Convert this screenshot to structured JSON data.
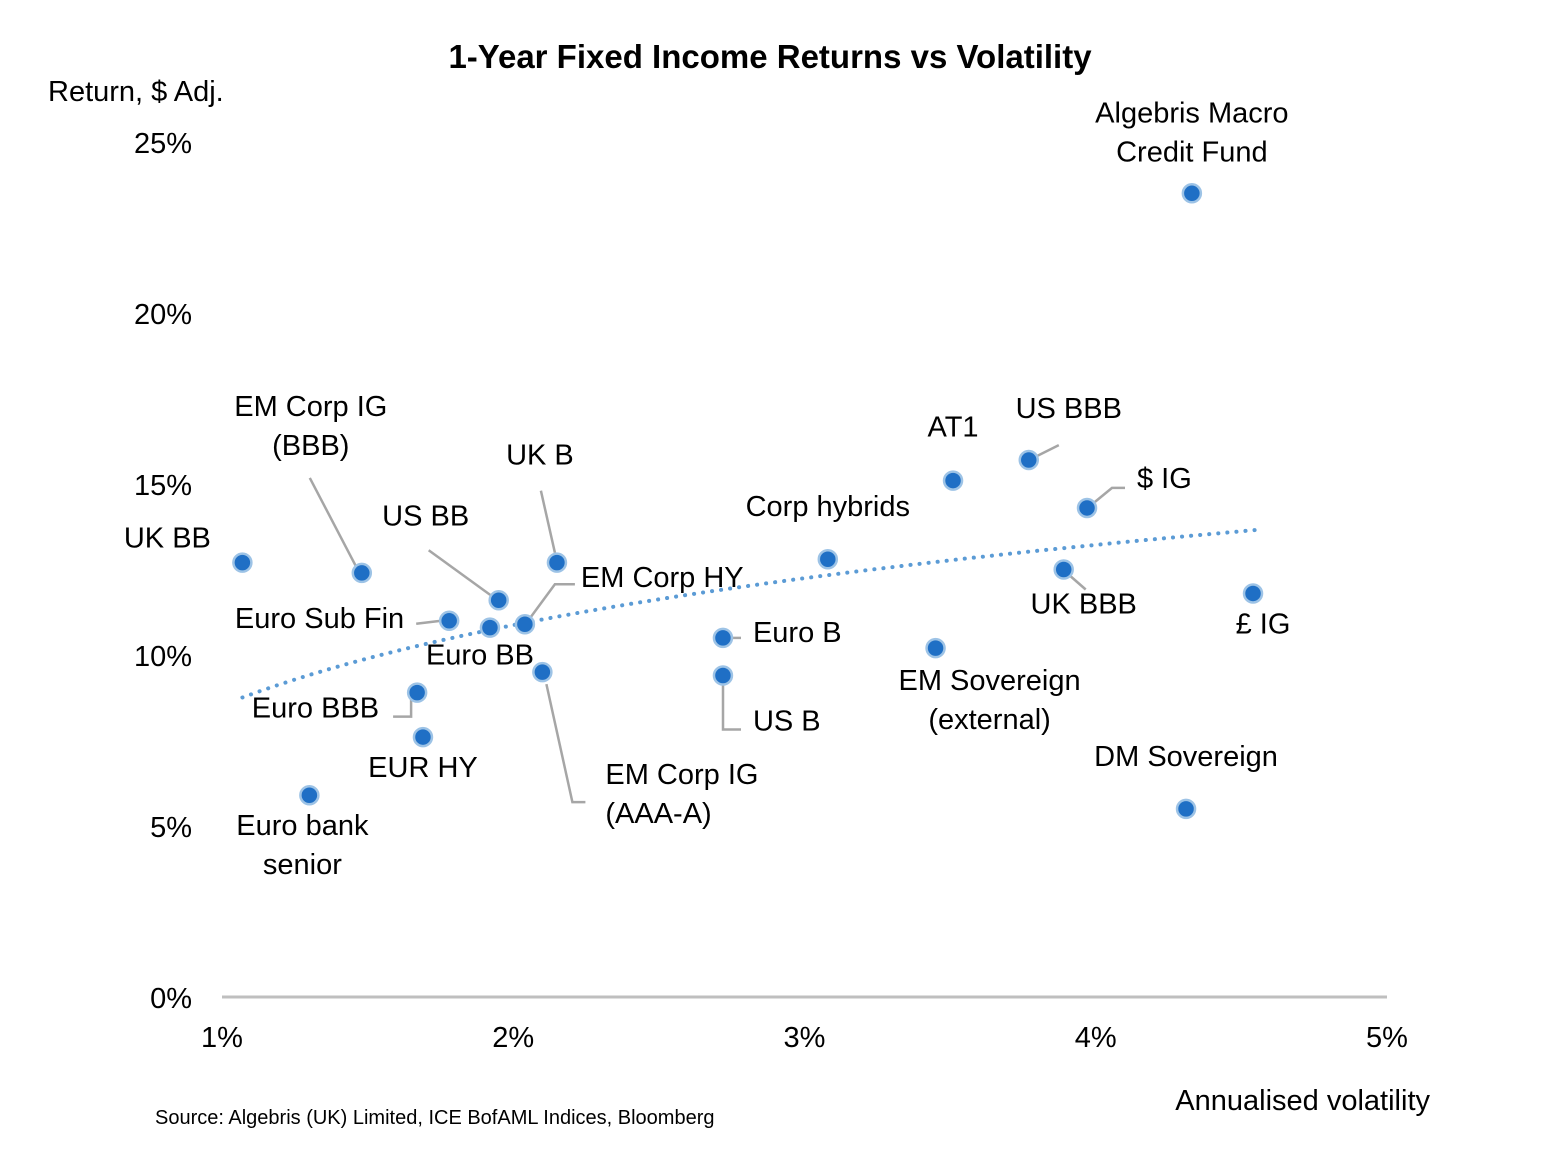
{
  "chart_data": {
    "type": "scatter",
    "title": "1-Year Fixed Income Returns vs Volatility",
    "ylabel": "Return, $ Adj.",
    "xlabel": "Annualised volatility",
    "source": "Source: Algebris (UK) Limited, ICE BofAML Indices, Bloomberg",
    "xlim": [
      1,
      5
    ],
    "ylim": [
      0,
      25
    ],
    "x_ticks": [
      "1%",
      "2%",
      "3%",
      "4%",
      "5%"
    ],
    "y_ticks": [
      "0%",
      "5%",
      "10%",
      "15%",
      "20%",
      "25%"
    ],
    "grid": false,
    "marker_color": "#1F6FC5",
    "marker_edge_color": "#9DC3E6",
    "trendline": {
      "type": "logarithmic",
      "style": "dotted",
      "color": "#5B9BD5",
      "x_start": 1.07,
      "x_end": 4.55
    },
    "points": [
      {
        "name": "Algebris Macro Credit Fund",
        "label_lines": [
          "Algebris Macro",
          "Credit Fund"
        ],
        "x": 4.33,
        "y": 23.5
      },
      {
        "name": "UK BB",
        "label_lines": [
          "UK BB"
        ],
        "x": 1.07,
        "y": 12.7
      },
      {
        "name": "EM Corp IG (BBB)",
        "label_lines": [
          "EM Corp IG",
          "(BBB)"
        ],
        "x": 1.48,
        "y": 12.4
      },
      {
        "name": "UK B",
        "label_lines": [
          "UK B"
        ],
        "x": 2.15,
        "y": 12.7
      },
      {
        "name": "US BB",
        "label_lines": [
          "US BB"
        ],
        "x": 1.95,
        "y": 11.6
      },
      {
        "name": "EM Corp HY",
        "label_lines": [
          "EM Corp HY"
        ],
        "x": 2.04,
        "y": 10.9
      },
      {
        "name": "Euro Sub Fin",
        "label_lines": [
          "Euro Sub Fin"
        ],
        "x": 1.78,
        "y": 11.0
      },
      {
        "name": "Euro BB",
        "label_lines": [
          "Euro BB"
        ],
        "x": 1.92,
        "y": 10.8
      },
      {
        "name": "EM Corp IG (AAA-A)",
        "label_lines": [
          "EM Corp IG",
          "(AAA-A)"
        ],
        "x": 2.1,
        "y": 9.5
      },
      {
        "name": "Euro BBB",
        "label_lines": [
          "Euro BBB"
        ],
        "x": 1.67,
        "y": 8.9
      },
      {
        "name": "EUR HY",
        "label_lines": [
          "EUR HY"
        ],
        "x": 1.69,
        "y": 7.6
      },
      {
        "name": "Euro bank senior",
        "label_lines": [
          "Euro bank",
          "senior"
        ],
        "x": 1.3,
        "y": 5.9
      },
      {
        "name": "Corp hybrids",
        "label_lines": [
          "Corp hybrids"
        ],
        "x": 3.08,
        "y": 12.8
      },
      {
        "name": "Euro B",
        "label_lines": [
          "Euro B"
        ],
        "x": 2.72,
        "y": 10.5
      },
      {
        "name": "US B",
        "label_lines": [
          "US B"
        ],
        "x": 2.72,
        "y": 9.4
      },
      {
        "name": "AT1",
        "label_lines": [
          "AT1"
        ],
        "x": 3.51,
        "y": 15.1
      },
      {
        "name": "US BBB",
        "label_lines": [
          "US BBB"
        ],
        "x": 3.77,
        "y": 15.7
      },
      {
        "name": "$ IG",
        "label_lines": [
          "$ IG"
        ],
        "x": 3.97,
        "y": 14.3
      },
      {
        "name": "UK BBB",
        "label_lines": [
          "UK BBB"
        ],
        "x": 3.89,
        "y": 12.5
      },
      {
        "name": "£ IG",
        "label_lines": [
          "£ IG"
        ],
        "x": 4.54,
        "y": 11.8
      },
      {
        "name": "EM Sovereign (external)",
        "label_lines": [
          "EM Sovereign",
          "(external)"
        ],
        "x": 3.45,
        "y": 10.2
      },
      {
        "name": "DM Sovereign",
        "label_lines": [
          "DM Sovereign"
        ],
        "x": 4.31,
        "y": 5.5
      }
    ]
  }
}
